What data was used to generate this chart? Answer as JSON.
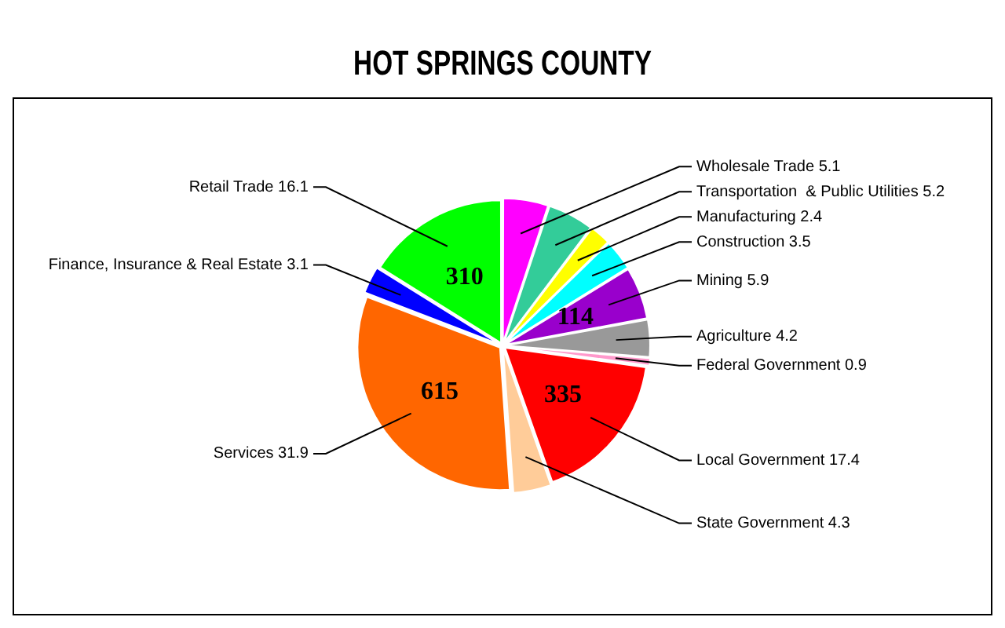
{
  "chart_data": {
    "type": "pie",
    "title": "HOT SPRINGS COUNTY",
    "categories": [
      "Wholesale Trade 5.1",
      "Transportation  & Public Utilities 5.2",
      "Manufacturing 2.4",
      "Construction 3.5",
      "Mining 5.9",
      "Agriculture 4.2",
      "Federal Government 0.9",
      "Local Government 17.4",
      "State Government 4.3",
      "Services 31.9",
      "Finance, Insurance & Real Estate 3.1",
      "Retail Trade 16.1"
    ],
    "values": [
      5.1,
      5.2,
      2.4,
      3.5,
      5.9,
      4.2,
      0.9,
      17.4,
      4.3,
      31.9,
      3.1,
      16.1
    ],
    "colors": [
      "#ff00ff",
      "#33cc99",
      "#ffff00",
      "#00ffff",
      "#9900cc",
      "#999999",
      "#ff99cc",
      "#ff0000",
      "#ffcc99",
      "#ff6600",
      "#0000ff",
      "#00ff00"
    ],
    "legend": false,
    "annotations": [
      {
        "text": "310",
        "x": "Retail Trade 16.1"
      },
      {
        "text": "615",
        "x": "Services 31.9"
      },
      {
        "text": "114",
        "x": "Mining 5.9"
      },
      {
        "text": "335",
        "x": "Local Government 17.4"
      }
    ]
  }
}
